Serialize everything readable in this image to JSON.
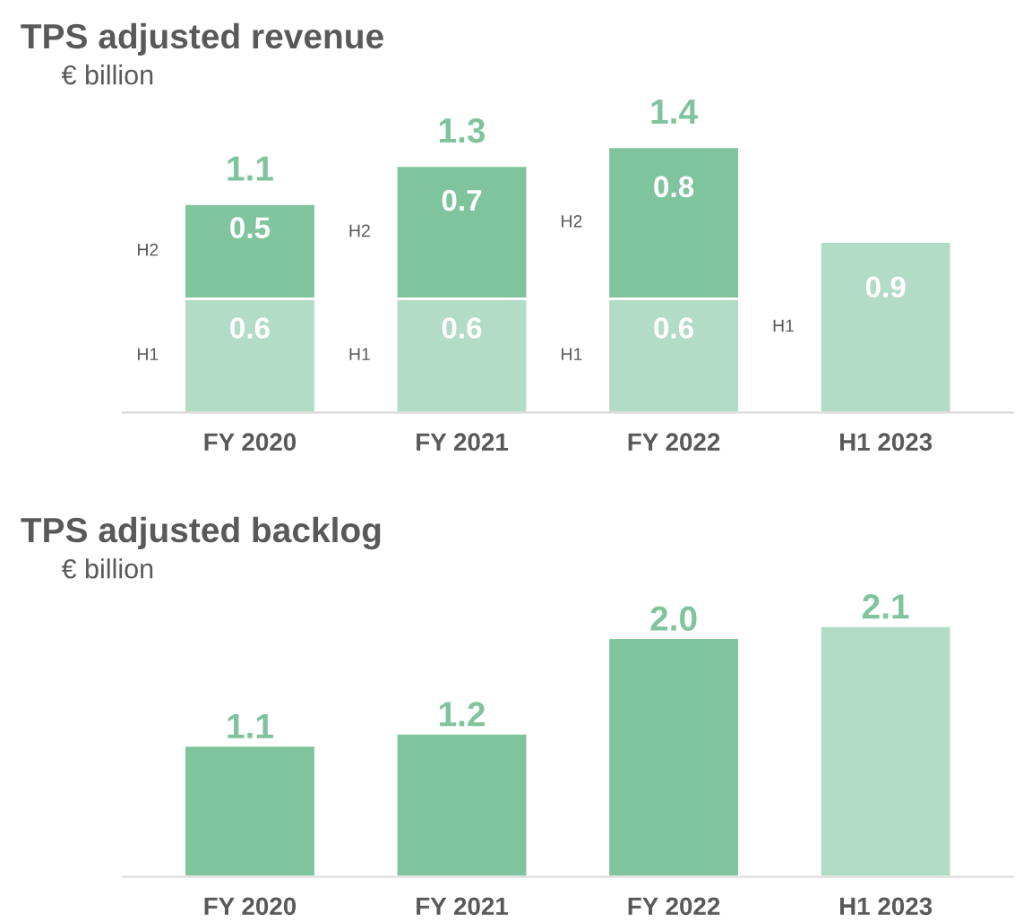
{
  "chart_data": [
    {
      "type": "bar",
      "title": "TPS adjusted revenue",
      "subtitle": "€ billion",
      "stacked": true,
      "data_labels": true,
      "categories": [
        "FY 2020",
        "FY 2021",
        "FY 2022",
        "H1 2023"
      ],
      "series": [
        {
          "name": "H1",
          "color": "#b2dcc5",
          "values": [
            0.6,
            0.6,
            0.6,
            0.9
          ]
        },
        {
          "name": "H2",
          "color": "#80c49e",
          "values": [
            0.5,
            0.7,
            0.8,
            null
          ]
        }
      ],
      "totals": [
        "1.1",
        "1.3",
        "1.4",
        null
      ]
    },
    {
      "type": "bar",
      "title": "TPS adjusted backlog",
      "subtitle": "€ billion",
      "value_labels": [
        "1.1",
        "1.2",
        "2.0",
        "2.1"
      ],
      "categories": [
        "FY 2020",
        "FY 2021",
        "FY 2022",
        "H1 2023"
      ],
      "values": [
        1.1,
        1.2,
        2.0,
        2.1
      ],
      "colors": [
        "#80c49e",
        "#80c49e",
        "#80c49e",
        "#b2dcc5"
      ]
    }
  ]
}
